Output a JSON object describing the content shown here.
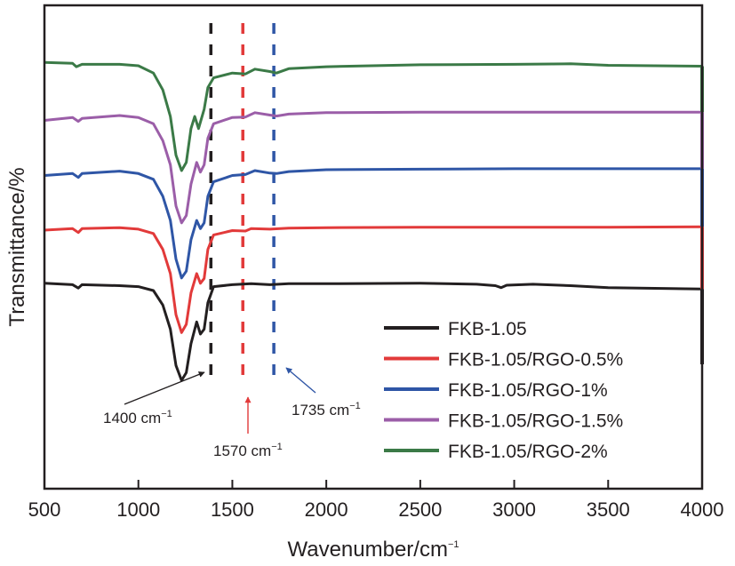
{
  "chart_data": {
    "type": "line",
    "title": "",
    "xlabel": "Wavenumber/cm",
    "xlabel_sup": "−1",
    "ylabel": "Transmittance/%",
    "xlim": [
      500,
      4000
    ],
    "ylim": [
      0,
      100
    ],
    "xticks": [
      500,
      1000,
      1500,
      2000,
      2500,
      3000,
      3500,
      4000
    ],
    "yticks": [],
    "grid": false,
    "legend": {
      "placement": "bottom-right"
    },
    "series": [
      {
        "name": "FKB-1.05",
        "color": "#231f20",
        "points": [
          [
            500,
            42.5
          ],
          [
            650,
            42.2
          ],
          [
            680,
            41.5
          ],
          [
            700,
            42.2
          ],
          [
            900,
            42.0
          ],
          [
            1000,
            41.8
          ],
          [
            1080,
            41.0
          ],
          [
            1130,
            38.0
          ],
          [
            1170,
            33.0
          ],
          [
            1200,
            25.5
          ],
          [
            1230,
            22.4
          ],
          [
            1255,
            24.0
          ],
          [
            1280,
            30.0
          ],
          [
            1310,
            34.5
          ],
          [
            1330,
            32.0
          ],
          [
            1350,
            33.0
          ],
          [
            1370,
            38.5
          ],
          [
            1400,
            41.8
          ],
          [
            1500,
            42.2
          ],
          [
            1600,
            42.4
          ],
          [
            1700,
            42.2
          ],
          [
            1800,
            42.4
          ],
          [
            2000,
            42.4
          ],
          [
            2500,
            42.5
          ],
          [
            2800,
            42.3
          ],
          [
            2900,
            42.0
          ],
          [
            2930,
            41.6
          ],
          [
            2960,
            42.1
          ],
          [
            3100,
            42.3
          ],
          [
            3300,
            42.0
          ],
          [
            3500,
            41.6
          ],
          [
            4000,
            41.3
          ]
        ]
      },
      {
        "name": "FKB-1.05/RGO-0.5%",
        "color": "#e23a3a",
        "points": [
          [
            500,
            53.5
          ],
          [
            650,
            53.8
          ],
          [
            680,
            53.0
          ],
          [
            700,
            53.8
          ],
          [
            900,
            54.0
          ],
          [
            1000,
            53.7
          ],
          [
            1080,
            52.8
          ],
          [
            1130,
            49.5
          ],
          [
            1170,
            44.5
          ],
          [
            1200,
            36.0
          ],
          [
            1230,
            32.3
          ],
          [
            1255,
            34.0
          ],
          [
            1280,
            40.5
          ],
          [
            1310,
            44.5
          ],
          [
            1330,
            42.5
          ],
          [
            1350,
            43.5
          ],
          [
            1370,
            49.5
          ],
          [
            1400,
            52.5
          ],
          [
            1500,
            53.4
          ],
          [
            1570,
            53.3
          ],
          [
            1600,
            53.8
          ],
          [
            1700,
            53.7
          ],
          [
            1800,
            53.9
          ],
          [
            2000,
            54.0
          ],
          [
            2500,
            54.1
          ],
          [
            3000,
            54.1
          ],
          [
            3500,
            54.1
          ],
          [
            4000,
            54.2
          ]
        ]
      },
      {
        "name": "FKB-1.05/RGO-1%",
        "color": "#2f56a6",
        "points": [
          [
            500,
            64.8
          ],
          [
            650,
            65.2
          ],
          [
            680,
            64.4
          ],
          [
            700,
            65.2
          ],
          [
            900,
            65.7
          ],
          [
            1000,
            65.2
          ],
          [
            1080,
            64.0
          ],
          [
            1130,
            60.5
          ],
          [
            1170,
            55.5
          ],
          [
            1200,
            47.5
          ],
          [
            1230,
            43.6
          ],
          [
            1255,
            45.0
          ],
          [
            1280,
            51.5
          ],
          [
            1310,
            55.5
          ],
          [
            1330,
            53.8
          ],
          [
            1350,
            55.0
          ],
          [
            1370,
            60.5
          ],
          [
            1400,
            63.5
          ],
          [
            1500,
            64.8
          ],
          [
            1570,
            65.0
          ],
          [
            1620,
            65.8
          ],
          [
            1700,
            65.3
          ],
          [
            1735,
            65.2
          ],
          [
            1800,
            65.6
          ],
          [
            2000,
            66.0
          ],
          [
            2500,
            66.1
          ],
          [
            3000,
            66.2
          ],
          [
            3500,
            66.2
          ],
          [
            4000,
            66.2
          ]
        ]
      },
      {
        "name": "FKB-1.05/RGO-1.5%",
        "color": "#9b5ea8",
        "points": [
          [
            500,
            76.2
          ],
          [
            650,
            76.8
          ],
          [
            680,
            76.0
          ],
          [
            700,
            76.6
          ],
          [
            900,
            77.2
          ],
          [
            1000,
            76.8
          ],
          [
            1080,
            75.5
          ],
          [
            1130,
            72.0
          ],
          [
            1170,
            67.0
          ],
          [
            1200,
            58.5
          ],
          [
            1230,
            55.0
          ],
          [
            1255,
            56.5
          ],
          [
            1280,
            63.0
          ],
          [
            1310,
            67.5
          ],
          [
            1330,
            65.5
          ],
          [
            1350,
            67.0
          ],
          [
            1370,
            72.5
          ],
          [
            1400,
            75.5
          ],
          [
            1500,
            76.8
          ],
          [
            1570,
            76.9
          ],
          [
            1620,
            77.8
          ],
          [
            1700,
            77.3
          ],
          [
            1735,
            77.1
          ],
          [
            1800,
            77.5
          ],
          [
            2000,
            77.8
          ],
          [
            2500,
            77.9
          ],
          [
            3000,
            77.9
          ],
          [
            3500,
            77.9
          ],
          [
            4000,
            77.9
          ]
        ]
      },
      {
        "name": "FKB-1.05/RGO-2%",
        "color": "#3b7a47",
        "points": [
          [
            500,
            88.2
          ],
          [
            650,
            88.0
          ],
          [
            670,
            87.3
          ],
          [
            700,
            87.8
          ],
          [
            900,
            87.8
          ],
          [
            1000,
            87.5
          ],
          [
            1080,
            86.0
          ],
          [
            1130,
            82.5
          ],
          [
            1170,
            77.0
          ],
          [
            1200,
            69.0
          ],
          [
            1230,
            65.8
          ],
          [
            1255,
            67.5
          ],
          [
            1280,
            74.5
          ],
          [
            1300,
            77.0
          ],
          [
            1320,
            74.5
          ],
          [
            1350,
            78.5
          ],
          [
            1370,
            83.0
          ],
          [
            1400,
            85.0
          ],
          [
            1500,
            86.0
          ],
          [
            1570,
            85.8
          ],
          [
            1620,
            86.8
          ],
          [
            1700,
            86.3
          ],
          [
            1735,
            86.0
          ],
          [
            1800,
            86.9
          ],
          [
            2000,
            87.3
          ],
          [
            2500,
            87.7
          ],
          [
            3000,
            87.8
          ],
          [
            3300,
            87.9
          ],
          [
            3500,
            87.6
          ],
          [
            4000,
            87.4
          ]
        ]
      }
    ],
    "reference_lines": [
      {
        "x": 1400,
        "color": "#231f20",
        "style": "dashed"
      },
      {
        "x": 1570,
        "color": "#e23a3a",
        "style": "dashed"
      },
      {
        "x": 1735,
        "color": "#2f56a6",
        "style": "dashed"
      }
    ],
    "annotations": [
      {
        "text": "1400 cm",
        "sup": "−1",
        "color": "#231f20",
        "points_to": 1400
      },
      {
        "text": "1570 cm",
        "sup": "−1",
        "color": "#e23a3a",
        "points_to": 1570
      },
      {
        "text": "1735 cm",
        "sup": "−1",
        "color": "#2f56a6",
        "points_to": 1735
      }
    ]
  }
}
